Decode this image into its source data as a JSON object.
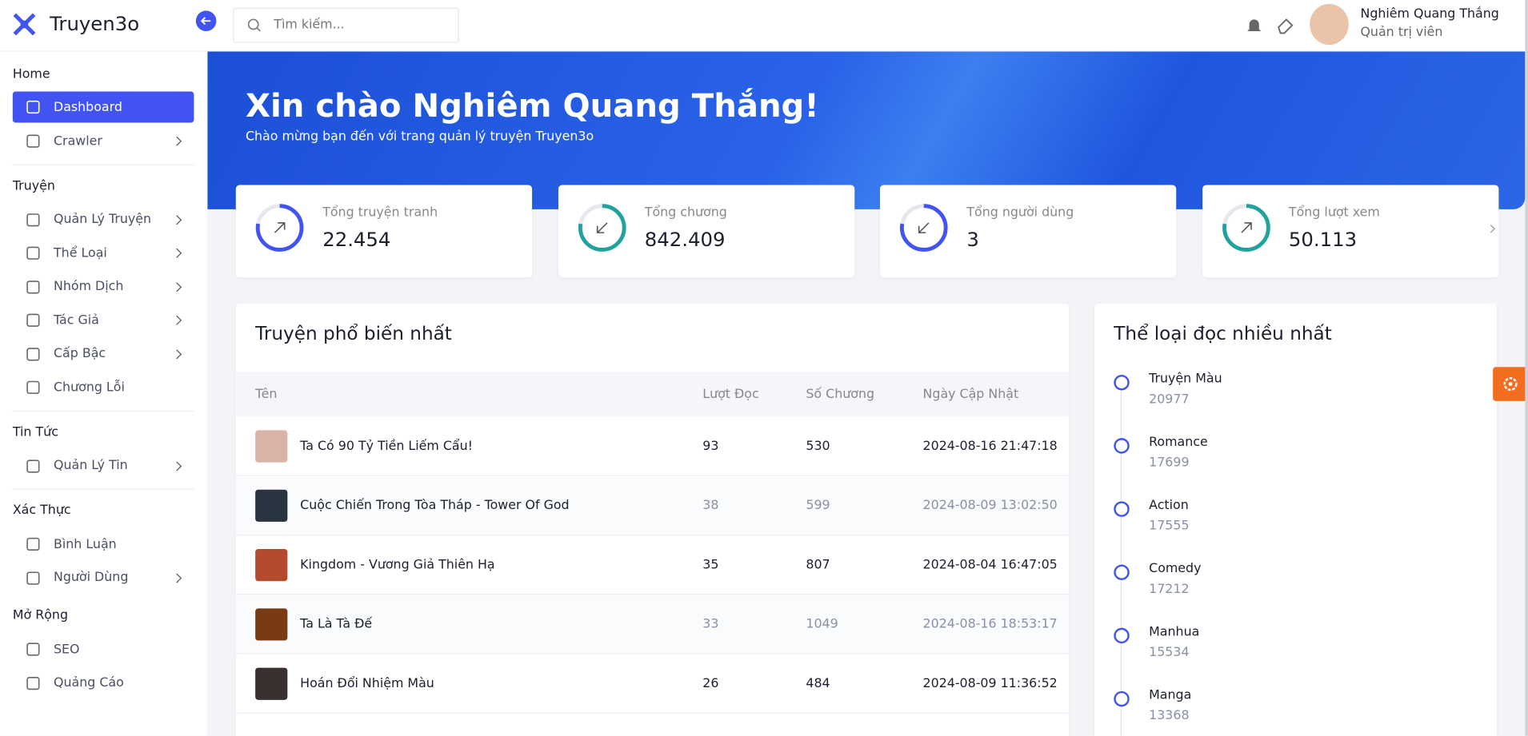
{
  "brand": "Truyen3o",
  "search_placeholder": "Tìm kiếm...",
  "user": {
    "name": "Nghiêm Quang Thắng",
    "role": "Quản trị viên"
  },
  "sidebar": [
    {
      "heading": "Home",
      "items": [
        {
          "label": "Dashboard",
          "active": true
        },
        {
          "label": "Crawler",
          "arrow": true
        }
      ]
    },
    {
      "heading": "Truyện",
      "items": [
        {
          "label": "Quản Lý Truyện",
          "arrow": true
        },
        {
          "label": "Thể Loại",
          "arrow": true
        },
        {
          "label": "Nhóm Dịch",
          "arrow": true
        },
        {
          "label": "Tác Giả",
          "arrow": true
        },
        {
          "label": "Cấp Bậc",
          "arrow": true
        },
        {
          "label": "Chương Lỗi"
        }
      ]
    },
    {
      "heading": "Tin Tức",
      "items": [
        {
          "label": "Quản Lý Tin",
          "arrow": true
        }
      ]
    },
    {
      "heading": "Xác Thực",
      "items": [
        {
          "label": "Bình Luận"
        },
        {
          "label": "Người Dùng",
          "arrow": true
        }
      ]
    },
    {
      "heading": "Mở Rộng",
      "items": [
        {
          "label": "SEO"
        },
        {
          "label": "Quảng Cáo"
        }
      ]
    }
  ],
  "banner": {
    "title": "Xin chào Nghiêm Quang Thắng!",
    "subtitle": "Chào mừng bạn đến với trang quản lý truyện Truyen3o"
  },
  "stats": [
    {
      "label": "Tổng truyện tranh",
      "value": "22.454",
      "color": "#4154f1",
      "trend": "up"
    },
    {
      "label": "Tổng chương",
      "value": "842.409",
      "color": "#20a39e",
      "trend": "down"
    },
    {
      "label": "Tổng người dùng",
      "value": "3",
      "color": "#4154f1",
      "trend": "down"
    },
    {
      "label": "Tổng lượt xem",
      "value": "50.113",
      "color": "#20a39e",
      "trend": "up"
    }
  ],
  "popular": {
    "title": "Truyện phổ biến nhất",
    "columns": [
      "Tên",
      "Lượt Đọc",
      "Số Chương",
      "Ngày Cập Nhật"
    ],
    "rows": [
      [
        "Ta Có 90 Tỷ Tiền Liếm Cẩu!",
        93,
        530,
        "2024-08-16 21:47:18"
      ],
      [
        "Cuộc Chiến Trong Tòa Tháp - Tower Of God",
        38,
        599,
        "2024-08-09 13:02:50"
      ],
      [
        "Kingdom - Vương Giả Thiên Hạ",
        35,
        807,
        "2024-08-04 16:47:05"
      ],
      [
        "Ta Là Tà Đế",
        33,
        1049,
        "2024-08-16 18:53:17"
      ],
      [
        "Hoán Đổi Nhiệm Màu",
        26,
        484,
        "2024-08-09 11:36:52"
      ]
    ]
  },
  "genres": {
    "title": "Thể loại đọc nhiều nhất",
    "items": [
      {
        "name": "Truyện Màu",
        "count": 20977
      },
      {
        "name": "Romance",
        "count": 17699
      },
      {
        "name": "Action",
        "count": 17555
      },
      {
        "name": "Comedy",
        "count": 17212
      },
      {
        "name": "Manhua",
        "count": 15534
      },
      {
        "name": "Manga",
        "count": 13368
      }
    ]
  }
}
